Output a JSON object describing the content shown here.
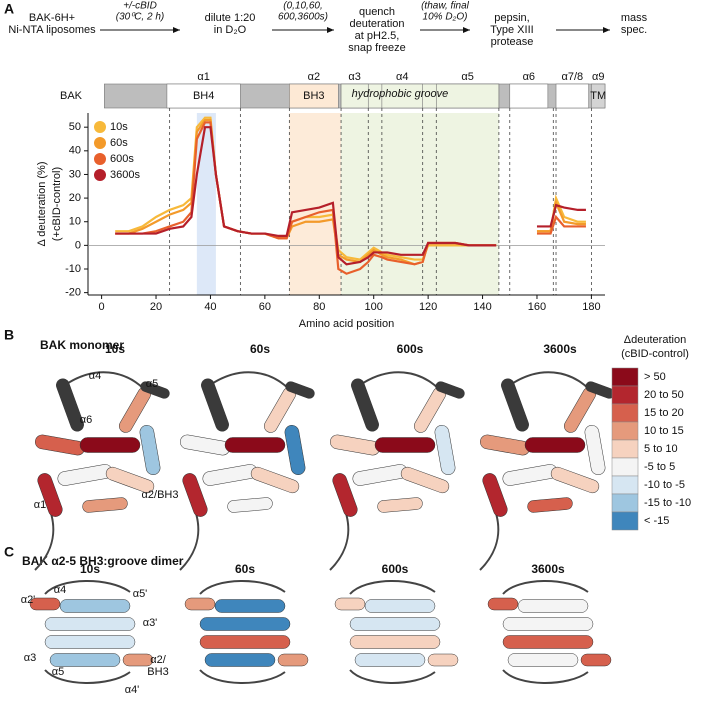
{
  "panel_a": {
    "label": "A",
    "workflow": {
      "steps": [
        [
          "BAK-6H+",
          "Ni-NTA liposomes"
        ],
        [
          "dilute 1:20",
          "in D₂O"
        ],
        [
          "quench",
          "deuteration",
          "at pH2.5,",
          "snap freeze"
        ],
        [
          "pepsin,",
          "Type XIII",
          "protease"
        ],
        [
          "mass",
          "spec."
        ]
      ],
      "arrow_labels": [
        [
          "+/-cBID",
          "(30⁰C, 2 h)"
        ],
        [
          "(0,10,60,",
          "600,3600s)"
        ],
        [
          "(thaw, final",
          "10% D₂O)"
        ]
      ]
    }
  },
  "chart_data": {
    "type": "line",
    "protein": "BAK",
    "domains": [
      {
        "name": "α1",
        "label": "BH4",
        "start": 24,
        "end": 51,
        "color": "#ffffff"
      },
      {
        "name": "α2",
        "label": "BH3",
        "start": 69,
        "end": 87,
        "color": "#fde9d5"
      },
      {
        "name": "α3",
        "start": 88,
        "end": 98,
        "color": "#eef4e2"
      },
      {
        "name": "α4",
        "start": 103,
        "end": 118,
        "color": "#eef4e2"
      },
      {
        "name": "α5",
        "start": 123,
        "end": 146,
        "color": "#eef4e2"
      },
      {
        "name": "α6",
        "start": 150,
        "end": 164,
        "color": "#ffffff"
      },
      {
        "name": "α7/8",
        "start": 167,
        "end": 179,
        "color": "#ffffff"
      },
      {
        "name": "α9",
        "label": "TM",
        "start": 180,
        "end": 185,
        "color": "#d4d4d4"
      }
    ],
    "groove": {
      "label": "hydrophobic groove",
      "start": 88,
      "end": 146,
      "color": "#eef4e2"
    },
    "highlights": [
      {
        "start": 35,
        "end": 42,
        "color": "#dde8f8"
      },
      {
        "start": 69,
        "end": 88,
        "color": "#fdebd9"
      },
      {
        "start": 88,
        "end": 146,
        "color": "#eef4e2"
      }
    ],
    "boundaries": [
      25,
      51,
      69,
      88,
      98,
      103,
      118,
      123,
      146,
      150,
      166,
      167,
      180
    ],
    "x": [
      5,
      10,
      15,
      20,
      25,
      30,
      33,
      35,
      38,
      40,
      42,
      45,
      50,
      55,
      60,
      65,
      68,
      70,
      75,
      80,
      85,
      87,
      90,
      95,
      98,
      100,
      103,
      105,
      110,
      115,
      118,
      120,
      125,
      130,
      135,
      140,
      145,
      150,
      160,
      163,
      165,
      167,
      170,
      175,
      178
    ],
    "series": [
      {
        "name": "10s",
        "color": "#f7b93a",
        "values": [
          6,
          6,
          8,
          12,
          15,
          17,
          20,
          50,
          54,
          54,
          30,
          8,
          6,
          5,
          5,
          3,
          3,
          10,
          12,
          12,
          13,
          -2,
          -5,
          -6,
          -3,
          -1,
          -3,
          -4,
          -5,
          -6,
          -6,
          0,
          0,
          0,
          0,
          0,
          0,
          null,
          6,
          6,
          6,
          20,
          12,
          10,
          10
        ]
      },
      {
        "name": "60s",
        "color": "#f39a2a",
        "values": [
          5,
          5,
          7,
          10,
          13,
          15,
          18,
          48,
          53,
          53,
          30,
          8,
          6,
          5,
          5,
          3,
          3,
          8,
          10,
          10,
          11,
          -4,
          -6,
          -7,
          -4,
          -2,
          -4,
          -5,
          -6,
          -8,
          -7,
          1,
          1,
          1,
          0,
          0,
          0,
          null,
          6,
          6,
          6,
          18,
          10,
          9,
          9
        ]
      },
      {
        "name": "600s",
        "color": "#e8602c",
        "values": [
          5,
          5,
          5,
          6,
          8,
          10,
          14,
          45,
          52,
          52,
          30,
          8,
          6,
          5,
          5,
          3,
          3,
          10,
          12,
          14,
          15,
          -10,
          -12,
          -10,
          -7,
          -4,
          -5,
          -6,
          -7,
          -8,
          -7,
          1,
          1,
          1,
          0,
          0,
          0,
          null,
          5,
          5,
          5,
          12,
          8,
          8,
          8
        ]
      },
      {
        "name": "3600s",
        "color": "#b51f2a",
        "values": [
          5,
          5,
          5,
          5,
          7,
          8,
          12,
          30,
          50,
          50,
          30,
          8,
          6,
          5,
          5,
          4,
          4,
          14,
          15,
          16,
          18,
          -5,
          -8,
          -7,
          -5,
          -3,
          -3,
          -3,
          -4,
          -4,
          -4,
          1,
          1,
          1,
          0,
          0,
          0,
          null,
          8,
          8,
          8,
          17,
          16,
          15,
          15
        ]
      }
    ],
    "xlim": [
      -5,
      185
    ],
    "xticks": [
      0,
      20,
      40,
      60,
      80,
      100,
      120,
      140,
      160,
      180
    ],
    "ylim": [
      -21,
      56
    ],
    "yticks": [
      -20,
      -10,
      0,
      10,
      20,
      30,
      40,
      50
    ],
    "xlabel": "Amino acid position",
    "ylabel": [
      "Δ deuteration (%)",
      "(+cBID-control)"
    ],
    "legend": "upper left"
  },
  "panel_b": {
    "label": "B",
    "title": "BAK monomer",
    "times": [
      "10s",
      "60s",
      "600s",
      "3600s"
    ],
    "helix_labels": [
      "α4",
      "α5",
      "α6",
      "α1",
      "α2/BH3"
    ],
    "legend": {
      "title": [
        "Δdeuteration",
        "(cBID-control)"
      ],
      "entries": [
        {
          "label": "> 50",
          "color": "#8b0a1a"
        },
        {
          "label": "20 to 50",
          "color": "#b3262e"
        },
        {
          "label": "15 to 20",
          "color": "#d6604d"
        },
        {
          "label": "10 to 15",
          "color": "#e59a7c"
        },
        {
          "label": "5 to 10",
          "color": "#f6d2bf"
        },
        {
          "label": "-5 to 5",
          "color": "#f4f4f4"
        },
        {
          "label": "-10 to -5",
          "color": "#d6e6f2"
        },
        {
          "label": "-15 to -10",
          "color": "#9ec6e0"
        },
        {
          "label": "< -15",
          "color": "#3f86bc"
        }
      ]
    }
  },
  "panel_c": {
    "label": "C",
    "title": "BAK α2-5 BH3:groove dimer",
    "times": [
      "10s",
      "60s",
      "600s",
      "3600s"
    ],
    "helix_labels": [
      "α2'",
      "α4",
      "α5'",
      "α3'",
      "α3",
      "α5",
      [
        "α2/",
        "BH3"
      ],
      "α4'"
    ]
  }
}
